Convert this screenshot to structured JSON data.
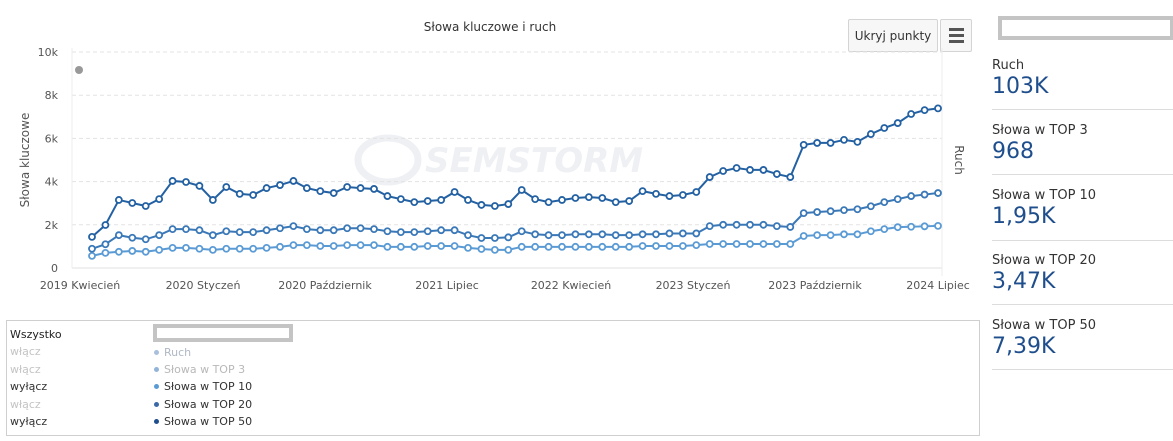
{
  "chart": {
    "title": "Słowa kluczowe i ruch",
    "hide_points_button": "Ukryj punkty",
    "menu_icon": "hamburger-menu-icon",
    "ylabel_left": "Słowa kluczowe",
    "ylabel_right": "Ruch",
    "watermark": "SEMSTORM",
    "yticks": [
      "0",
      "2k",
      "4k",
      "6k",
      "8k",
      "10k"
    ],
    "xticks": [
      "2019 Kwiecień",
      "2020 Styczeń",
      "2020 Październik",
      "2021 Lipiec",
      "2022 Kwiecień",
      "2023 Styczeń",
      "2023 Październik",
      "2024 Lipiec"
    ]
  },
  "legend": {
    "all_label": "Wszystko",
    "toggles": [
      "włącz",
      "włącz",
      "wyłącz",
      "włącz",
      "wyłącz"
    ],
    "series": [
      "Ruch",
      "Słowa w TOP 3",
      "Słowa w TOP 10",
      "Słowa w TOP 20",
      "Słowa w TOP 50"
    ]
  },
  "stats": [
    {
      "label": "Ruch",
      "value": "103K"
    },
    {
      "label": "Słowa w TOP 3",
      "value": "968"
    },
    {
      "label": "Słowa w TOP 10",
      "value": "1,95K"
    },
    {
      "label": "Słowa w TOP 20",
      "value": "3,47K"
    },
    {
      "label": "Słowa w TOP 50",
      "value": "7,39K"
    }
  ],
  "colors": {
    "top10": "#5b9bd5",
    "top20": "#3a78b8",
    "top50": "#2361a3",
    "ruch_point": "#999999",
    "stat_value": "#1f4e8c"
  },
  "chart_data": {
    "type": "line",
    "title": "Słowa kluczowe i ruch",
    "xlabel": "",
    "ylabel": "Słowa kluczowe",
    "ylabel_right": "Ruch",
    "ylim": [
      0,
      10000
    ],
    "grid": true,
    "legend_position": "bottom",
    "x_start": "2019 Kwiecień",
    "x_end": "2024 Lipiec",
    "x_tick_labels": [
      "2019 Kwiecień",
      "2020 Styczeń",
      "2020 Październik",
      "2021 Lipiec",
      "2022 Kwiecień",
      "2023 Styczeń",
      "2023 Październik",
      "2024 Lipiec"
    ],
    "series": [
      {
        "name": "Słowa w TOP 50",
        "values": [
          1440,
          1990,
          3150,
          3010,
          2870,
          3190,
          4030,
          3980,
          3800,
          3150,
          3750,
          3430,
          3380,
          3700,
          3840,
          4030,
          3700,
          3560,
          3470,
          3750,
          3700,
          3660,
          3330,
          3190,
          3050,
          3100,
          3150,
          3520,
          3150,
          2920,
          2870,
          2960,
          3610,
          3190,
          3050,
          3150,
          3240,
          3280,
          3240,
          3050,
          3100,
          3560,
          3430,
          3330,
          3380,
          3520,
          4210,
          4490,
          4630,
          4540,
          4540,
          4350,
          4210,
          5700,
          5790,
          5790,
          5930,
          5840,
          6200,
          6480,
          6710,
          7130,
          7310,
          7390
        ]
      },
      {
        "name": "Słowa w TOP 20",
        "values": [
          890,
          1100,
          1520,
          1400,
          1330,
          1520,
          1800,
          1800,
          1750,
          1520,
          1700,
          1660,
          1660,
          1750,
          1840,
          1940,
          1800,
          1750,
          1750,
          1840,
          1840,
          1800,
          1700,
          1660,
          1660,
          1700,
          1750,
          1750,
          1520,
          1390,
          1390,
          1420,
          1700,
          1560,
          1520,
          1520,
          1560,
          1560,
          1560,
          1520,
          1520,
          1560,
          1560,
          1600,
          1600,
          1600,
          1940,
          2000,
          2000,
          2000,
          2000,
          1940,
          1900,
          2540,
          2590,
          2630,
          2680,
          2720,
          2860,
          3050,
          3190,
          3330,
          3400,
          3470
        ]
      },
      {
        "name": "Słowa w TOP 10",
        "values": [
          560,
          700,
          750,
          790,
          750,
          840,
          930,
          930,
          890,
          840,
          890,
          890,
          890,
          930,
          980,
          1060,
          1060,
          1020,
          1020,
          1060,
          1060,
          1060,
          980,
          980,
          980,
          1020,
          1020,
          1020,
          930,
          880,
          840,
          840,
          980,
          980,
          980,
          980,
          980,
          980,
          980,
          980,
          980,
          1020,
          1020,
          1020,
          1020,
          1060,
          1110,
          1110,
          1110,
          1110,
          1110,
          1110,
          1110,
          1480,
          1520,
          1520,
          1560,
          1560,
          1700,
          1800,
          1890,
          1910,
          1930,
          1950
        ]
      },
      {
        "name": "Ruch",
        "values": [
          9100
        ],
        "note": "single grey point at start (right axis)"
      }
    ]
  }
}
